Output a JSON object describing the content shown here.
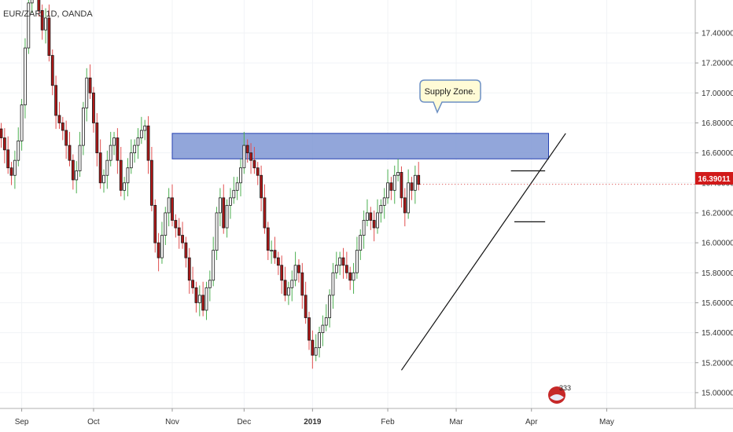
{
  "chart_data": {
    "type": "candlestick",
    "title": "EUR/ZAR, 1D, OANDA",
    "y_axis": {
      "min": 14.9,
      "max": 17.62,
      "ticks": [
        "17.40000",
        "17.20000",
        "17.00000",
        "16.80000",
        "16.60000",
        "16.40000",
        "16.20000",
        "16.00000",
        "15.80000",
        "15.60000",
        "15.40000",
        "15.20000",
        "15.00000"
      ]
    },
    "x_axis": {
      "labels": [
        {
          "label": "Sep",
          "bar": 6
        },
        {
          "label": "Oct",
          "bar": 27
        },
        {
          "label": "Nov",
          "bar": 50
        },
        {
          "label": "Dec",
          "bar": 71
        },
        {
          "label": "2019",
          "bar": 91
        },
        {
          "label": "Feb",
          "bar": 113
        },
        {
          "label": "Mar",
          "bar": 133
        },
        {
          "label": "Apr",
          "bar": 155
        },
        {
          "label": "May",
          "bar": 177
        }
      ]
    },
    "last_price": "16.39011",
    "closes": [
      16.7,
      16.62,
      16.5,
      16.45,
      16.55,
      16.68,
      16.92,
      17.3,
      17.6,
      17.9,
      17.8,
      17.55,
      17.42,
      17.5,
      17.25,
      17.05,
      16.85,
      16.8,
      16.75,
      16.65,
      16.55,
      16.42,
      16.48,
      16.65,
      16.9,
      17.1,
      17.0,
      16.8,
      16.6,
      16.4,
      16.45,
      16.55,
      16.65,
      16.7,
      16.55,
      16.35,
      16.4,
      16.5,
      16.6,
      16.65,
      16.7,
      16.75,
      16.78,
      16.55,
      16.25,
      16.0,
      15.9,
      16.05,
      16.2,
      16.3,
      16.15,
      16.1,
      16.05,
      16.0,
      15.9,
      15.75,
      15.7,
      15.6,
      15.65,
      15.55,
      15.7,
      15.75,
      15.95,
      16.2,
      16.3,
      16.1,
      16.25,
      16.3,
      16.35,
      16.4,
      16.5,
      16.65,
      16.6,
      16.55,
      16.5,
      16.45,
      16.3,
      16.1,
      15.95,
      15.95,
      15.9,
      15.85,
      15.75,
      15.65,
      15.7,
      15.75,
      15.85,
      15.8,
      15.65,
      15.5,
      15.35,
      15.25,
      15.3,
      15.4,
      15.45,
      15.5,
      15.65,
      15.8,
      15.85,
      15.9,
      15.85,
      15.8,
      15.75,
      15.8,
      15.95,
      16.05,
      16.15,
      16.2,
      16.15,
      16.1,
      16.2,
      16.25,
      16.3,
      16.4,
      16.35,
      16.45,
      16.47,
      16.3,
      16.2,
      16.4,
      16.35,
      16.45,
      16.39
    ],
    "annotations": [
      {
        "type": "zone",
        "label": "Supply Zone.",
        "price_low": 16.56,
        "price_high": 16.73,
        "bar_start": 50,
        "bar_end": 160
      },
      {
        "type": "trendline",
        "from": {
          "bar": 117,
          "price": 15.15
        },
        "to": {
          "bar": 165,
          "price": 16.73
        }
      },
      {
        "type": "hline",
        "price": 16.48,
        "bar_start": 149,
        "bar_end": 159
      },
      {
        "type": "hline",
        "price": 16.14,
        "bar_start": 150,
        "bar_end": 159
      }
    ]
  },
  "colors": {
    "up_body": "#ffffff",
    "up_outline": "#1a1a1a",
    "down_body": "#b01818",
    "down_outline": "#1a1a1a",
    "wick_up": "#4caf50",
    "wick_down": "#e05050",
    "zone_fill": "#7f97d3",
    "zone_border": "#2541b2",
    "price_tag": "#d11a1a",
    "callout_fill": "#fffbd6",
    "callout_border": "#6b8fc4",
    "badge_fill": "#c62828"
  },
  "badge": {
    "text": "333"
  }
}
